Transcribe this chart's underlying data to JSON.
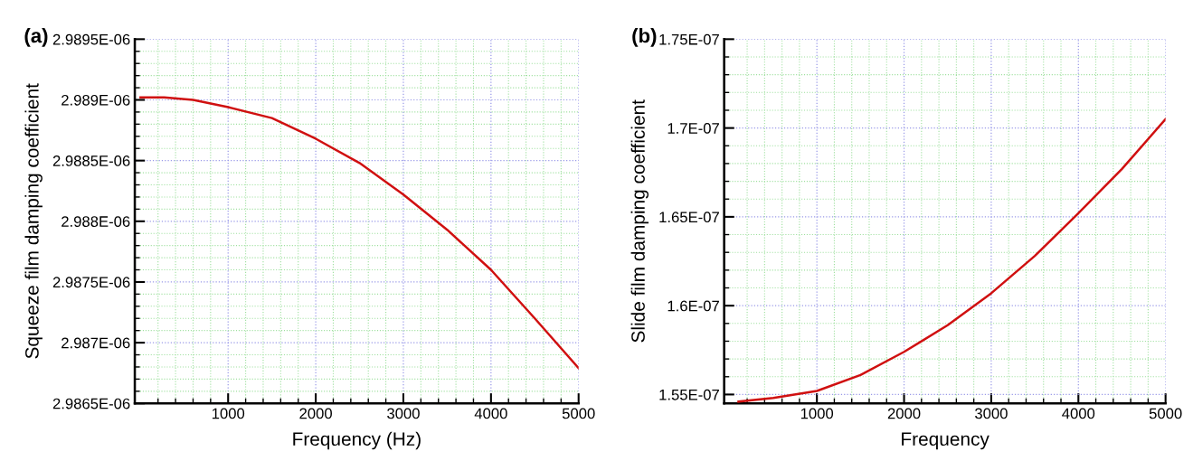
{
  "chart_data": [
    {
      "type": "line",
      "title": "(a)",
      "xlabel": "Frequency (Hz)",
      "ylabel": "Squeeze film damping coefficient",
      "x": [
        0,
        270,
        600,
        1000,
        1500,
        2000,
        2500,
        3000,
        3500,
        4000,
        4500,
        5000
      ],
      "series": [
        {
          "color": "#d01010",
          "values": [
            2.98902e-06,
            2.98902e-06,
            2.989e-06,
            2.98894e-06,
            2.98885e-06,
            2.98868e-06,
            2.98848e-06,
            2.98822e-06,
            2.98793e-06,
            2.9876e-06,
            2.9872e-06,
            2.98679e-06
          ]
        }
      ],
      "xlim": [
        -65,
        5000
      ],
      "xticks": [
        {
          "value": 200,
          "label": null
        },
        {
          "value": 400,
          "label": null
        },
        {
          "value": 600,
          "label": null
        },
        {
          "value": 800,
          "label": null
        },
        1000,
        {
          "value": 1200,
          "label": null
        },
        {
          "value": 1400,
          "label": null
        },
        {
          "value": 1600,
          "label": null
        },
        {
          "value": 1800,
          "label": null
        },
        2000,
        {
          "value": 2200,
          "label": null
        },
        {
          "value": 2400,
          "label": null
        },
        {
          "value": 2600,
          "label": null
        },
        {
          "value": 2800,
          "label": null
        },
        3000,
        {
          "value": 3200,
          "label": null
        },
        {
          "value": 3400,
          "label": null
        },
        {
          "value": 3600,
          "label": null
        },
        {
          "value": 3800,
          "label": null
        },
        4000,
        {
          "value": 4200,
          "label": null
        },
        {
          "value": 4400,
          "label": null
        },
        {
          "value": 4600,
          "label": null
        },
        {
          "value": 4800,
          "label": null
        },
        5000
      ],
      "ylim": [
        2.9865e-06,
        2.9895e-06
      ],
      "yticks": [
        {
          "value": 2.9865e-06,
          "label": "2.9865E-06"
        },
        {
          "value": 2.9866e-06,
          "label": null
        },
        {
          "value": 2.9867e-06,
          "label": null
        },
        {
          "value": 2.9868e-06,
          "label": null
        },
        {
          "value": 2.9869e-06,
          "label": null
        },
        {
          "value": 2.987e-06,
          "label": "2.987E-06"
        },
        {
          "value": 2.9871e-06,
          "label": null
        },
        {
          "value": 2.9872e-06,
          "label": null
        },
        {
          "value": 2.9873e-06,
          "label": null
        },
        {
          "value": 2.9874e-06,
          "label": null
        },
        {
          "value": 2.9875e-06,
          "label": "2.9875E-06"
        },
        {
          "value": 2.9876e-06,
          "label": null
        },
        {
          "value": 2.9877e-06,
          "label": null
        },
        {
          "value": 2.9878e-06,
          "label": null
        },
        {
          "value": 2.9879e-06,
          "label": null
        },
        {
          "value": 2.988e-06,
          "label": "2.988E-06"
        },
        {
          "value": 2.9881e-06,
          "label": null
        },
        {
          "value": 2.9882e-06,
          "label": null
        },
        {
          "value": 2.9883e-06,
          "label": null
        },
        {
          "value": 2.9884e-06,
          "label": null
        },
        {
          "value": 2.9885e-06,
          "label": "2.9885E-06"
        },
        {
          "value": 2.9886e-06,
          "label": null
        },
        {
          "value": 2.9887e-06,
          "label": null
        },
        {
          "value": 2.9888e-06,
          "label": null
        },
        {
          "value": 2.9889e-06,
          "label": null
        },
        {
          "value": 2.989e-06,
          "label": "2.989E-06"
        },
        {
          "value": 2.9891e-06,
          "label": null
        },
        {
          "value": 2.9892e-06,
          "label": null
        },
        {
          "value": 2.9893e-06,
          "label": null
        },
        {
          "value": 2.9894e-06,
          "label": null
        },
        {
          "value": 2.9895e-06,
          "label": "2.9895E-06"
        }
      ],
      "grid": true,
      "marker": "none",
      "line_style": "solid"
    },
    {
      "type": "line",
      "title": "(b)",
      "xlabel": "Frequency",
      "ylabel": "Slide film damping coefficient",
      "x": [
        100,
        500,
        1000,
        1500,
        2000,
        2500,
        3000,
        3500,
        4000,
        4500,
        5000
      ],
      "series": [
        {
          "color": "#d01010",
          "values": [
            1.546e-07,
            1.548e-07,
            1.552e-07,
            1.561e-07,
            1.574e-07,
            1.589e-07,
            1.607e-07,
            1.628e-07,
            1.652e-07,
            1.677e-07,
            1.705e-07
          ]
        }
      ],
      "xlim": [
        -64,
        5000
      ],
      "xticks": [
        {
          "value": 200,
          "label": null
        },
        {
          "value": 400,
          "label": null
        },
        {
          "value": 600,
          "label": null
        },
        {
          "value": 800,
          "label": null
        },
        1000,
        {
          "value": 1200,
          "label": null
        },
        {
          "value": 1400,
          "label": null
        },
        {
          "value": 1600,
          "label": null
        },
        {
          "value": 1800,
          "label": null
        },
        2000,
        {
          "value": 2200,
          "label": null
        },
        {
          "value": 2400,
          "label": null
        },
        {
          "value": 2600,
          "label": null
        },
        {
          "value": 2800,
          "label": null
        },
        3000,
        {
          "value": 3200,
          "label": null
        },
        {
          "value": 3400,
          "label": null
        },
        {
          "value": 3600,
          "label": null
        },
        {
          "value": 3800,
          "label": null
        },
        4000,
        {
          "value": 4200,
          "label": null
        },
        {
          "value": 4400,
          "label": null
        },
        {
          "value": 4600,
          "label": null
        },
        {
          "value": 4800,
          "label": null
        },
        5000
      ],
      "ylim": [
        1.545e-07,
        1.75e-07
      ],
      "yticks": [
        {
          "value": 1.55e-07,
          "label": "1.55E-07"
        },
        {
          "value": 1.56e-07,
          "label": null
        },
        {
          "value": 1.57e-07,
          "label": null
        },
        {
          "value": 1.58e-07,
          "label": null
        },
        {
          "value": 1.59e-07,
          "label": null
        },
        {
          "value": 1.6e-07,
          "label": "1.6E-07"
        },
        {
          "value": 1.61e-07,
          "label": null
        },
        {
          "value": 1.62e-07,
          "label": null
        },
        {
          "value": 1.63e-07,
          "label": null
        },
        {
          "value": 1.64e-07,
          "label": null
        },
        {
          "value": 1.65e-07,
          "label": "1.65E-07"
        },
        {
          "value": 1.66e-07,
          "label": null
        },
        {
          "value": 1.67e-07,
          "label": null
        },
        {
          "value": 1.68e-07,
          "label": null
        },
        {
          "value": 1.69e-07,
          "label": null
        },
        {
          "value": 1.7e-07,
          "label": "1.7E-07"
        },
        {
          "value": 1.71e-07,
          "label": null
        },
        {
          "value": 1.72e-07,
          "label": null
        },
        {
          "value": 1.73e-07,
          "label": null
        },
        {
          "value": 1.74e-07,
          "label": null
        },
        {
          "value": 1.75e-07,
          "label": "1.75E-07"
        }
      ],
      "grid": true,
      "marker": "none",
      "line_style": "solid"
    }
  ]
}
